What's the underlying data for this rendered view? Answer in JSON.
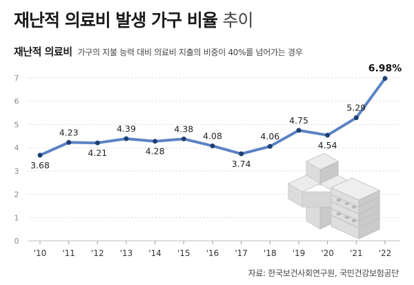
{
  "header": {
    "title_main": "재난적 의료비 발생 가구 비율",
    "title_suffix": "추이",
    "subtitle": "재난적 의료비",
    "description": "가구의 지불 능력 대비 의료비 지출의 비중이 40%를 넘어가는 경우"
  },
  "footer": {
    "source": "자료: 한국보건사회연구원, 국민건강보험공단"
  },
  "colors": {
    "line": "#5b82c4",
    "marker": "#1f3f73",
    "grid": "#d9d9d9"
  },
  "chart_data": {
    "type": "line",
    "title": "재난적 의료비 발생 가구 비율 추이",
    "xlabel": "",
    "ylabel": "",
    "categories": [
      "'10",
      "'11",
      "'12",
      "'13",
      "'14",
      "'15",
      "'16",
      "'17",
      "'18",
      "'19",
      "'20",
      "'21",
      "'22"
    ],
    "series": [
      {
        "name": "재난적 의료비 발생 가구 비율 (%)",
        "values": [
          3.68,
          4.23,
          4.21,
          4.39,
          4.28,
          4.38,
          4.08,
          3.74,
          4.06,
          4.75,
          4.54,
          5.29,
          6.98
        ],
        "labels": [
          "3.68",
          "4.23",
          "4.21",
          "4.39",
          "4.28",
          "4.38",
          "4.08",
          "3.74",
          "4.06",
          "4.75",
          "4.54",
          "5.29",
          "6.98%"
        ]
      }
    ],
    "ylim": [
      0,
      7
    ],
    "yticks": [
      "0",
      "1",
      "2",
      "3",
      "4",
      "5",
      "6",
      "7"
    ],
    "grid": true,
    "legend": "none"
  }
}
